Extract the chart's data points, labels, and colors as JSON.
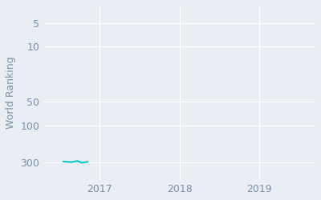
{
  "ylabel": "World Ranking",
  "x_data": [
    2016.55,
    2016.65,
    2016.72,
    2016.78,
    2016.85
  ],
  "y_data": [
    290,
    295,
    285,
    300,
    292
  ],
  "line_color": "#00c8c8",
  "background_color": "#e8eef4",
  "grid_color": "#ffffff",
  "tick_label_color": "#7a8fa6",
  "yticks": [
    300,
    100,
    50,
    10,
    5
  ],
  "xticks": [
    2017,
    2018,
    2019
  ],
  "xlim": [
    2016.3,
    2019.7
  ],
  "ylim_bottom": 500,
  "ylim_top": 3,
  "line_width": 1.5,
  "font_size": 9
}
